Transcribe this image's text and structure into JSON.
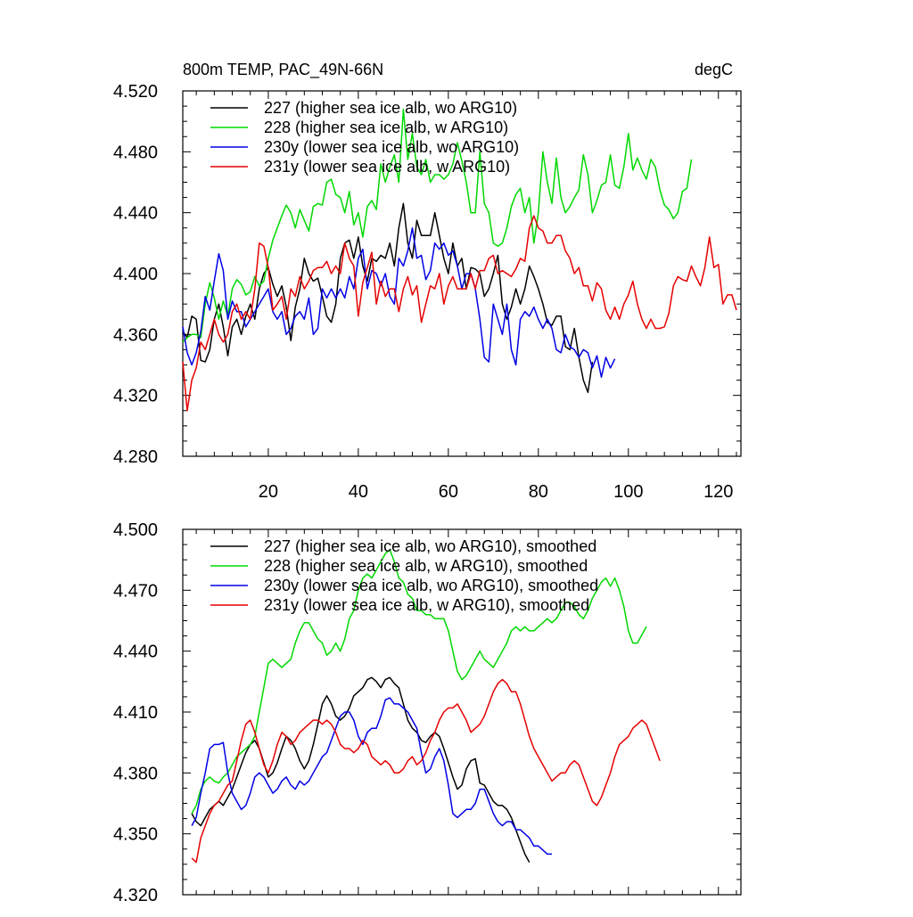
{
  "chart_data": [
    {
      "type": "line",
      "title": "800m TEMP, PAC_49N-66N",
      "units": "degC",
      "xlim": [
        1,
        125
      ],
      "ylim": [
        4.28,
        4.52
      ],
      "yticks": [
        "4.280",
        "4.320",
        "4.360",
        "4.400",
        "4.440",
        "4.480",
        "4.520"
      ],
      "xticks": [
        "20",
        "40",
        "60",
        "80",
        "100",
        "120"
      ],
      "legend": "top-left",
      "series": [
        {
          "name": "227 (higher sea ice alb, wo ARG10)",
          "color": "#000000",
          "x_start": 1,
          "values": [
            4.362,
            4.358,
            4.372,
            4.37,
            4.343,
            4.342,
            4.35,
            4.37,
            4.38,
            4.365,
            4.346,
            4.365,
            4.37,
            4.36,
            4.372,
            4.38,
            4.37,
            4.39,
            4.4,
            4.404,
            4.393,
            4.385,
            4.392,
            4.378,
            4.356,
            4.378,
            4.39,
            4.41,
            4.4,
            4.395,
            4.397,
            4.385,
            4.372,
            4.368,
            4.38,
            4.41,
            4.42,
            4.422,
            4.41,
            4.424,
            4.405,
            4.395,
            4.41,
            4.408,
            4.412,
            4.41,
            4.42,
            4.405,
            4.43,
            4.446,
            4.42,
            4.41,
            4.435,
            4.425,
            4.425,
            4.425,
            4.44,
            4.425,
            4.41,
            4.4,
            4.42,
            4.405,
            4.41,
            4.39,
            4.404,
            4.403,
            4.4,
            4.385,
            4.39,
            4.4,
            4.412,
            4.38,
            4.37,
            4.378,
            4.39,
            4.38,
            4.39,
            4.405,
            4.398,
            4.39,
            4.38,
            4.368,
            4.366,
            4.372,
            4.372,
            4.352,
            4.35,
            4.364,
            4.345,
            4.33,
            4.322,
            4.342
          ]
        },
        {
          "name": "228 (higher sea ice alb, w ARG10)",
          "color": "#00d800",
          "x_start": 1,
          "values": [
            4.355,
            4.358,
            4.36,
            4.36,
            4.358,
            4.38,
            4.394,
            4.384,
            4.37,
            4.382,
            4.372,
            4.39,
            4.396,
            4.393,
            4.386,
            4.388,
            4.398,
            4.392,
            4.395,
            4.41,
            4.422,
            4.43,
            4.438,
            4.445,
            4.44,
            4.43,
            4.442,
            4.435,
            4.428,
            4.444,
            4.446,
            4.445,
            4.46,
            4.462,
            4.452,
            4.45,
            4.44,
            4.454,
            4.432,
            4.44,
            4.424,
            4.444,
            4.448,
            4.442,
            4.472,
            4.46,
            4.47,
            4.478,
            4.46,
            4.508,
            4.475,
            4.492,
            4.47,
            4.465,
            4.475,
            4.46,
            4.465,
            4.465,
            4.462,
            4.465,
            4.472,
            4.486,
            4.474,
            4.46,
            4.44,
            4.44,
            4.48,
            4.446,
            4.44,
            4.42,
            4.418,
            4.42,
            4.43,
            4.444,
            4.452,
            4.456,
            4.44,
            4.45,
            4.42,
            4.44,
            4.48,
            4.46,
            4.446,
            4.476,
            4.45,
            4.44,
            4.444,
            4.45,
            4.455,
            4.478,
            4.465,
            4.44,
            4.448,
            4.458,
            4.46,
            4.478,
            4.458,
            4.456,
            4.47,
            4.492,
            4.468,
            4.476,
            4.468,
            4.462,
            4.475,
            4.47,
            4.455,
            4.445,
            4.442,
            4.436,
            4.44,
            4.454,
            4.456,
            4.475
          ]
        },
        {
          "name": "230y (lower sea ice alb, wo ARG10)",
          "color": "#0000e6",
          "x_start": 1,
          "values": [
            4.365,
            4.348,
            4.34,
            4.348,
            4.362,
            4.385,
            4.376,
            4.395,
            4.413,
            4.402,
            4.37,
            4.382,
            4.375,
            4.375,
            4.365,
            4.37,
            4.375,
            4.38,
            4.385,
            4.39,
            4.375,
            4.37,
            4.375,
            4.36,
            4.364,
            4.372,
            4.375,
            4.37,
            4.384,
            4.36,
            4.364,
            4.39,
            4.384,
            4.39,
            4.384,
            4.39,
            4.384,
            4.398,
            4.39,
            4.41,
            4.416,
            4.39,
            4.402,
            4.4,
            4.392,
            4.4,
            4.385,
            4.38,
            4.41,
            4.405,
            4.415,
            4.43,
            4.41,
            4.412,
            4.396,
            4.402,
            4.42,
            4.416,
            4.42,
            4.412,
            4.415,
            4.405,
            4.39,
            4.4,
            4.4,
            4.39,
            4.37,
            4.345,
            4.342,
            4.38,
            4.37,
            4.36,
            4.38,
            4.35,
            4.34,
            4.37,
            4.375,
            4.372,
            4.378,
            4.37,
            4.364,
            4.37,
            4.364,
            4.35,
            4.348,
            4.36,
            4.352,
            4.35,
            4.345,
            4.35,
            4.348,
            4.338,
            4.346,
            4.332,
            4.345,
            4.338,
            4.344
          ]
        },
        {
          "name": "231y (lower sea ice alb, w ARG10)",
          "color": "#e60000",
          "x_start": 1,
          "values": [
            4.342,
            4.31,
            4.33,
            4.338,
            4.355,
            4.35,
            4.36,
            4.37,
            4.36,
            4.355,
            4.36,
            4.375,
            4.38,
            4.37,
            4.375,
            4.37,
            4.39,
            4.42,
            4.418,
            4.404,
            4.376,
            4.38,
            4.385,
            4.37,
            4.39,
            4.385,
            4.398,
            4.39,
            4.395,
            4.402,
            4.404,
            4.404,
            4.408,
            4.4,
            4.405,
            4.4,
            4.42,
            4.41,
            4.405,
            4.372,
            4.394,
            4.404,
            4.414,
            4.38,
            4.395,
            4.385,
            4.39,
            4.39,
            4.375,
            4.39,
            4.398,
            4.386,
            4.392,
            4.368,
            4.38,
            4.392,
            4.39,
            4.4,
            4.38,
            4.392,
            4.398,
            4.39,
            4.39,
            4.39,
            4.4,
            4.39,
            4.402,
            4.402,
            4.41,
            4.412,
            4.4,
            4.402,
            4.4,
            4.398,
            4.403,
            4.41,
            4.408,
            4.43,
            4.438,
            4.43,
            4.428,
            4.42,
            4.42,
            4.425,
            4.425,
            4.415,
            4.41,
            4.4,
            4.404,
            4.392,
            4.392,
            4.382,
            4.394,
            4.39,
            4.376,
            4.37,
            4.378,
            4.37,
            4.38,
            4.386,
            4.395,
            4.38,
            4.37,
            4.364,
            4.37,
            4.364,
            4.364,
            4.365,
            4.374,
            4.392,
            4.398,
            4.396,
            4.395,
            4.405,
            4.398,
            4.392,
            4.404,
            4.424,
            4.404,
            4.406,
            4.38,
            4.386,
            4.386,
            4.376
          ]
        }
      ]
    },
    {
      "type": "line",
      "xlim": [
        1,
        125
      ],
      "ylim": [
        4.32,
        4.5
      ],
      "yticks": [
        "4.320",
        "4.350",
        "4.380",
        "4.410",
        "4.440",
        "4.470",
        "4.500"
      ],
      "legend": "top-left",
      "series": [
        {
          "name": "227 (higher sea ice alb, wo ARG10), smoothed",
          "color": "#000000",
          "x_start": 3,
          "values": [
            4.36,
            4.356,
            4.354,
            4.358,
            4.362,
            4.364,
            4.366,
            4.364,
            4.368,
            4.372,
            4.378,
            4.384,
            4.39,
            4.394,
            4.396,
            4.392,
            4.385,
            4.378,
            4.38,
            4.385,
            4.392,
            4.398,
            4.396,
            4.392,
            4.386,
            4.382,
            4.386,
            4.394,
            4.404,
            4.414,
            4.418,
            4.414,
            4.408,
            4.406,
            4.408,
            4.412,
            4.418,
            4.42,
            4.422,
            4.426,
            4.427,
            4.425,
            4.422,
            4.426,
            4.427,
            4.424,
            4.422,
            4.414,
            4.406,
            4.402,
            4.4,
            4.396,
            4.395,
            4.398,
            4.4,
            4.398,
            4.392,
            4.385,
            4.378,
            4.372,
            4.374,
            4.382,
            4.386,
            4.387,
            4.375,
            4.374,
            4.37,
            4.366,
            4.364,
            4.364,
            4.362,
            4.358,
            4.352,
            4.346,
            4.34,
            4.336
          ]
        },
        {
          "name": "228 (higher sea ice alb, w ARG10), smoothed",
          "color": "#00d800",
          "x_start": 3,
          "values": [
            4.36,
            4.364,
            4.372,
            4.376,
            4.378,
            4.376,
            4.375,
            4.378,
            4.38,
            4.384,
            4.388,
            4.39,
            4.392,
            4.394,
            4.398,
            4.41,
            4.422,
            4.434,
            4.436,
            4.434,
            4.432,
            4.434,
            4.436,
            4.444,
            4.45,
            4.454,
            4.454,
            4.45,
            4.446,
            4.444,
            4.438,
            4.44,
            4.444,
            4.44,
            4.446,
            4.456,
            4.46,
            4.47,
            4.476,
            4.478,
            4.476,
            4.48,
            4.484,
            4.488,
            4.49,
            4.484,
            4.476,
            4.474,
            4.468,
            4.466,
            4.46,
            4.46,
            4.458,
            4.458,
            4.456,
            4.456,
            4.456,
            4.45,
            4.44,
            4.43,
            4.426,
            4.428,
            4.432,
            4.436,
            4.44,
            4.436,
            4.434,
            4.432,
            4.436,
            4.44,
            4.444,
            4.45,
            4.452,
            4.45,
            4.452,
            4.45,
            4.45,
            4.452,
            4.454,
            4.456,
            4.454,
            4.456,
            4.46,
            4.464,
            4.464,
            4.462,
            4.458,
            4.456,
            4.46,
            4.466,
            4.47,
            4.474,
            4.476,
            4.472,
            4.476,
            4.47,
            4.462,
            4.45,
            4.444,
            4.444,
            4.448,
            4.452
          ]
        },
        {
          "name": "230y (lower sea ice alb, wo ARG10), smoothed",
          "color": "#0000e6",
          "x_start": 3,
          "values": [
            4.354,
            4.358,
            4.37,
            4.38,
            4.392,
            4.394,
            4.394,
            4.395,
            4.38,
            4.37,
            4.366,
            4.362,
            4.364,
            4.37,
            4.378,
            4.38,
            4.378,
            4.374,
            4.37,
            4.372,
            4.376,
            4.378,
            4.374,
            4.372,
            4.376,
            4.374,
            4.376,
            4.38,
            4.384,
            4.388,
            4.39,
            4.396,
            4.402,
            4.408,
            4.41,
            4.41,
            4.406,
            4.398,
            4.394,
            4.4,
            4.402,
            4.402,
            4.408,
            4.416,
            4.417,
            4.414,
            4.414,
            4.412,
            4.41,
            4.406,
            4.402,
            4.39,
            4.38,
            4.382,
            4.388,
            4.392,
            4.386,
            4.374,
            4.36,
            4.358,
            4.36,
            4.362,
            4.362,
            4.365,
            4.372,
            4.372,
            4.366,
            4.36,
            4.356,
            4.354,
            4.356,
            4.356,
            4.352,
            4.352,
            4.35,
            4.348,
            4.344,
            4.344,
            4.342,
            4.34,
            4.34
          ]
        },
        {
          "name": "231y (lower sea ice alb, w ARG10), smoothed",
          "color": "#e60000",
          "x_start": 3,
          "values": [
            4.338,
            4.336,
            4.348,
            4.354,
            4.36,
            4.364,
            4.366,
            4.37,
            4.374,
            4.376,
            4.386,
            4.396,
            4.404,
            4.406,
            4.4,
            4.392,
            4.384,
            4.38,
            4.386,
            4.394,
            4.4,
            4.398,
            4.394,
            4.396,
            4.4,
            4.402,
            4.404,
            4.406,
            4.406,
            4.404,
            4.406,
            4.404,
            4.4,
            4.394,
            4.392,
            4.392,
            4.39,
            4.392,
            4.396,
            4.394,
            4.388,
            4.386,
            4.384,
            4.386,
            4.384,
            4.38,
            4.38,
            4.382,
            4.386,
            4.388,
            4.384,
            4.386,
            4.39,
            4.396,
            4.4,
            4.406,
            4.41,
            4.412,
            4.412,
            4.414,
            4.41,
            4.406,
            4.4,
            4.402,
            4.404,
            4.408,
            4.414,
            4.42,
            4.424,
            4.426,
            4.424,
            4.42,
            4.42,
            4.414,
            4.406,
            4.398,
            4.392,
            4.388,
            4.384,
            4.38,
            4.376,
            4.378,
            4.38,
            4.38,
            4.384,
            4.386,
            4.384,
            4.378,
            4.372,
            4.366,
            4.364,
            4.368,
            4.374,
            4.38,
            4.388,
            4.394,
            4.396,
            4.398,
            4.402,
            4.404,
            4.406,
            4.404,
            4.398,
            4.392,
            4.386
          ]
        }
      ]
    }
  ]
}
